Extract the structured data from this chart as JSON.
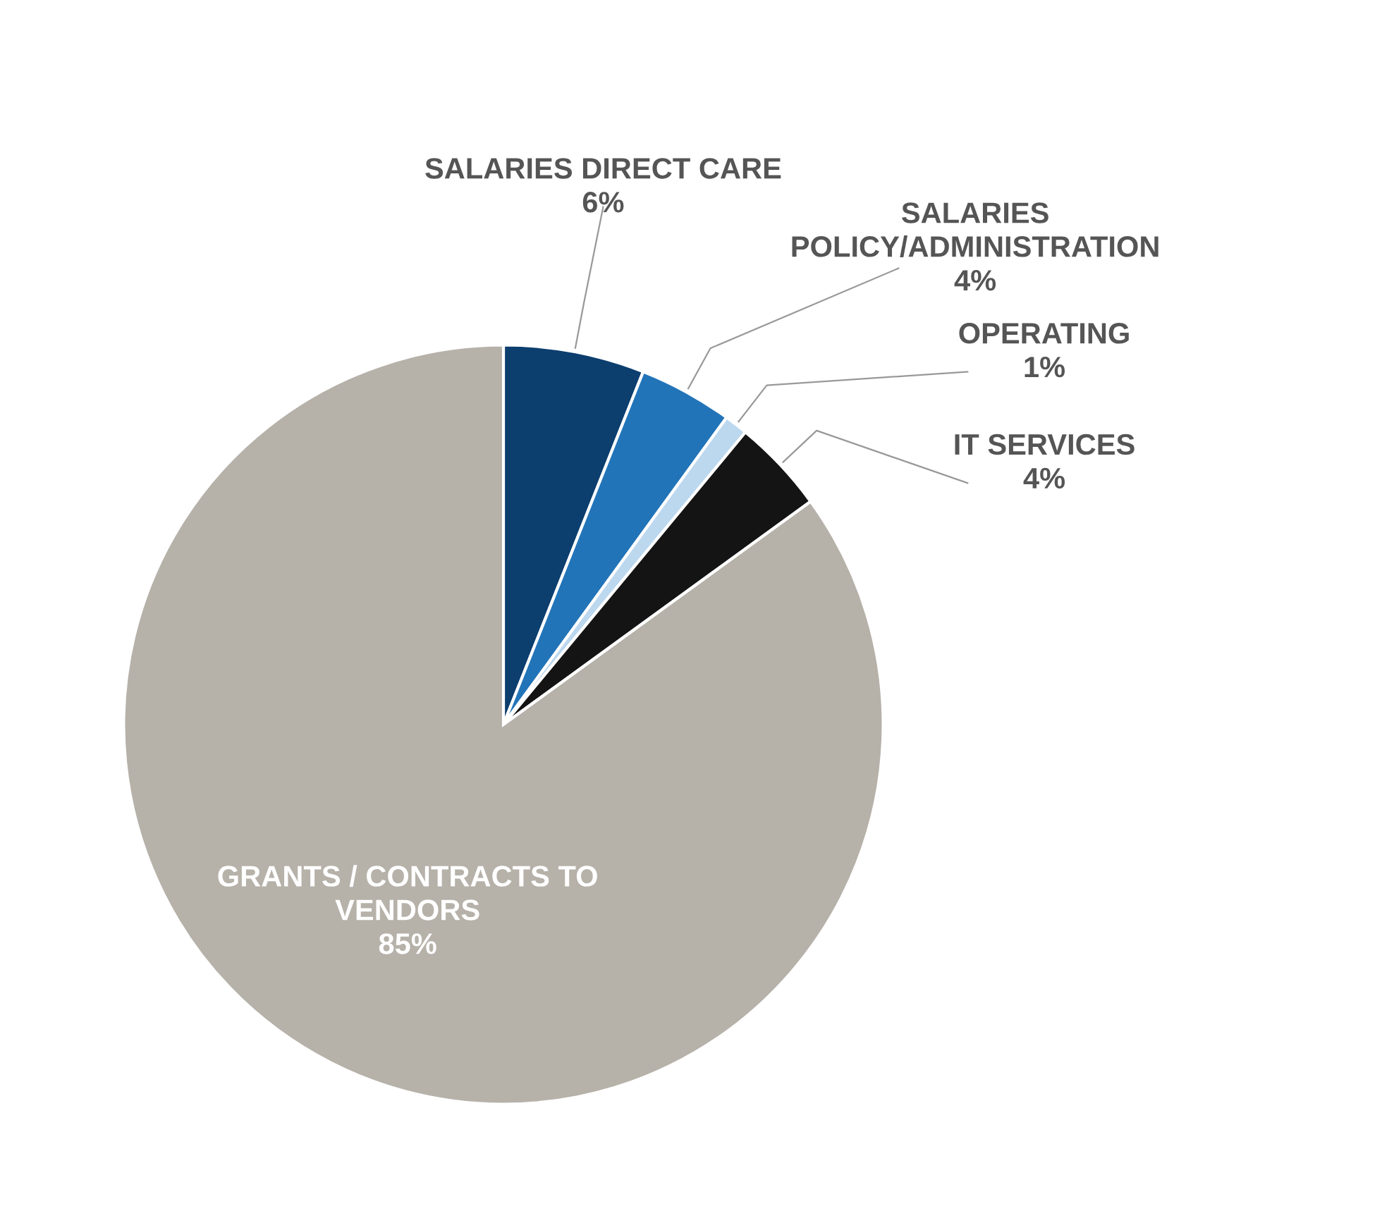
{
  "chart_data": {
    "type": "pie",
    "categories": [
      "SALARIES DIRECT CARE",
      "SALARIES\nPOLICY/ADMINISTRATION",
      "OPERATING",
      "IT SERVICES",
      "GRANTS / CONTRACTS TO\nVENDORS"
    ],
    "values": [
      6,
      4,
      1,
      4,
      85
    ],
    "value_labels": [
      "6%",
      "4%",
      "1%",
      "4%",
      "85%"
    ],
    "colors": [
      "#0c3e6e",
      "#2274b8",
      "#bcd8ef",
      "#141414",
      "#b6b1a9"
    ]
  }
}
